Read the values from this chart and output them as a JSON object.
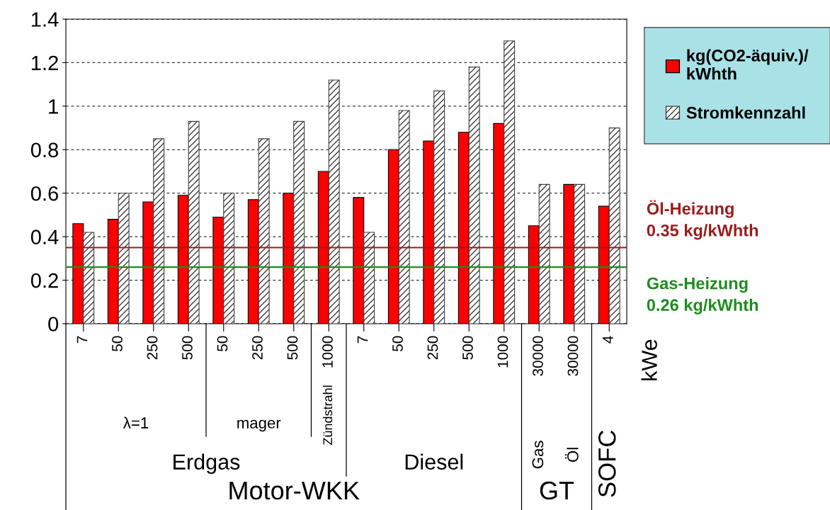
{
  "chart_data": {
    "type": "bar",
    "categories": [
      "7",
      "50",
      "250",
      "500",
      "50",
      "250",
      "500",
      "1000",
      "7",
      "50",
      "250",
      "500",
      "1000",
      "30000",
      "30000",
      "4"
    ],
    "series": [
      {
        "name": "kg(CO2-äquiv.)/\nkWhth",
        "color": "#ff0000",
        "values": [
          0.46,
          0.48,
          0.56,
          0.59,
          0.49,
          0.57,
          0.6,
          0.7,
          0.58,
          0.8,
          0.84,
          0.88,
          0.92,
          0.45,
          0.64,
          0.54
        ]
      },
      {
        "name": "Stromkennzahl",
        "color": "#404040",
        "values": [
          0.42,
          0.6,
          0.85,
          0.93,
          0.6,
          0.85,
          0.93,
          1.12,
          0.42,
          0.98,
          1.07,
          1.18,
          1.3,
          0.64,
          0.64,
          0.9
        ]
      }
    ],
    "ylim": [
      0,
      1.4
    ],
    "yticks": [
      0,
      0.2,
      0.4,
      0.6,
      0.8,
      1,
      1.2,
      1.4
    ],
    "grid": "y",
    "legend": "top right",
    "ref_lines": [
      {
        "axis": "y",
        "value": 0.35,
        "label": "Öl-Heizung\n0.35 kg/kWhth",
        "color": "#9b1b1b"
      },
      {
        "axis": "y",
        "value": 0.26,
        "label": "Gas-Heizung\n0.26 kg/kWhth",
        "color": "#1e8c1e"
      }
    ],
    "annotations": [
      "λ=1",
      "mager",
      "Zündstrahl",
      "Erdgas",
      "Diesel",
      "Gas",
      "Öl",
      "Motor-WKK",
      "GT",
      "SOFC",
      "kWe"
    ]
  }
}
